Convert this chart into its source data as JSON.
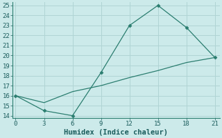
{
  "xlabel": "Humidex (Indice chaleur)",
  "line1_x": [
    0,
    3,
    6,
    9,
    12,
    15,
    18,
    21
  ],
  "line1_y": [
    16,
    14.5,
    14,
    18.3,
    23,
    25,
    22.8,
    19.8
  ],
  "line2_x": [
    0,
    3,
    6,
    9,
    12,
    15,
    18,
    21
  ],
  "line2_y": [
    16,
    15.3,
    16.4,
    17.0,
    17.8,
    18.5,
    19.3,
    19.8
  ],
  "line_color": "#2a7d6f",
  "marker_color": "#2a7d6f",
  "marker": "D",
  "marker_size": 2.5,
  "bg_color": "#cceaea",
  "grid_color": "#b0d4d4",
  "xlim": [
    -0.3,
    21.5
  ],
  "ylim": [
    13.8,
    25.3
  ],
  "xticks": [
    0,
    3,
    6,
    9,
    12,
    15,
    18,
    21
  ],
  "yticks": [
    14,
    15,
    16,
    17,
    18,
    19,
    20,
    21,
    22,
    23,
    24,
    25
  ],
  "tick_fontsize": 6.5,
  "xlabel_fontsize": 7.5,
  "linewidth": 0.9
}
